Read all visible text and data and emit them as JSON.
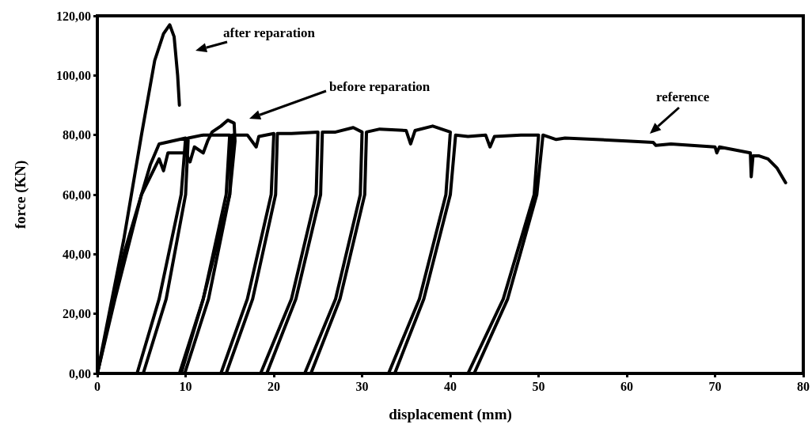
{
  "chart_data": {
    "type": "line",
    "xlabel": "displacement (mm)",
    "ylabel": "force (KN)",
    "xlim": [
      0,
      80
    ],
    "xticks": [
      0,
      10,
      20,
      30,
      40,
      50,
      60,
      70,
      80
    ],
    "ylim": [
      0,
      120
    ],
    "yticks": [
      {
        "value": 0,
        "label": "0,00"
      },
      {
        "value": 20,
        "label": "20,00"
      },
      {
        "value": 40,
        "label": "40,00"
      },
      {
        "value": 60,
        "label": "60,00"
      },
      {
        "value": 80,
        "label": "80,00"
      },
      {
        "value": 100,
        "label": "100,00"
      },
      {
        "value": 120,
        "label": "120,00"
      }
    ],
    "grid": false,
    "marker": "none",
    "line_style": "solid",
    "series": [
      {
        "color": "#000000",
        "x": [
          0,
          3,
          6,
          7,
          10,
          9.5,
          7,
          4.5,
          5.2,
          7.8,
          10,
          10.3,
          12,
          15,
          14.6,
          12,
          9.3,
          9.9,
          12.6,
          15,
          15.3,
          17,
          18,
          18.3,
          20,
          19.7,
          17,
          14,
          14.6,
          17.6,
          20.2,
          20.4,
          22,
          25,
          24.8,
          22,
          18.5,
          19.2,
          22.5,
          25.3,
          25.5,
          27,
          29,
          30,
          29.8,
          27,
          23.5,
          24.2,
          27.5,
          30.3,
          30.5,
          32,
          35,
          35.5,
          36,
          38,
          40,
          39.5,
          36.5,
          33,
          33.7,
          37,
          40,
          40.6,
          42,
          44,
          44.5,
          45,
          48,
          50,
          49.5,
          46,
          42,
          42.7,
          46.5,
          49.8,
          50.5,
          52,
          53,
          60,
          63,
          63.3,
          65,
          70,
          70.2,
          70.5,
          74,
          74.1,
          74.3,
          75,
          76,
          77,
          78
        ],
        "values": [
          0,
          40,
          70,
          77,
          79,
          60,
          25,
          0,
          0,
          25,
          60,
          79,
          80,
          80,
          60,
          25,
          0,
          0,
          25,
          60,
          80,
          80,
          76,
          79.5,
          80.5,
          60,
          25,
          0,
          0,
          25,
          60,
          80.5,
          80.5,
          81,
          60,
          25,
          0,
          0,
          25,
          60,
          81,
          81,
          82.5,
          81,
          60,
          25,
          0,
          0,
          25,
          60,
          81,
          82,
          81.5,
          77,
          81.5,
          83,
          81,
          60,
          25,
          0,
          0,
          25,
          60,
          80,
          79.5,
          80,
          76,
          79.5,
          80,
          80,
          60,
          25,
          0,
          0,
          25,
          60,
          80,
          78.5,
          79,
          78,
          77.5,
          76.5,
          77,
          76,
          74,
          76,
          74,
          66,
          73,
          73,
          72,
          69,
          64
        ]
      },
      {
        "color": "#000000",
        "x": [
          0,
          2,
          5,
          7,
          7.5,
          8,
          10,
          10.5,
          11,
          12,
          12.5,
          13,
          14,
          14.8,
          15.5,
          15.6,
          15,
          12,
          9.5
        ],
        "values": [
          0,
          25,
          60,
          72,
          68,
          74,
          74,
          71,
          76,
          74,
          78,
          81,
          83,
          85,
          84,
          78,
          60,
          25,
          0
        ]
      },
      {
        "color": "#000000",
        "x": [
          0,
          1,
          3,
          5,
          6.5,
          7.5,
          8.2,
          8.7,
          9.1,
          9.3
        ],
        "values": [
          0,
          15,
          45,
          80,
          105,
          114,
          117,
          113,
          100,
          90
        ]
      }
    ],
    "annotations": [
      "after reparation",
      "before reparation",
      "reference"
    ]
  }
}
